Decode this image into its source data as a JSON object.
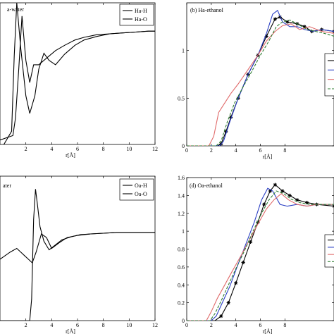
{
  "chart_data": [
    {
      "id": "a",
      "type": "line",
      "title": "a-water",
      "xlabel": "r[Å]",
      "ylabel": "",
      "xlim": [
        0,
        12
      ],
      "ylim": [
        0,
        1.6
      ],
      "x_ticks": [
        2,
        4,
        6,
        8,
        10,
        12
      ],
      "y_ticks": [],
      "legend": {
        "placement": "top-right",
        "entries": [
          "Ha-H",
          "Ha-O"
        ]
      },
      "series": [
        {
          "name": "Ha-H",
          "color": "#000000",
          "dash": "none",
          "x": [
            0,
            1.0,
            1.2,
            1.45,
            1.7,
            2.0,
            2.3,
            2.6,
            3.0,
            3.4,
            3.8,
            4.3,
            5.0,
            5.8,
            6.5,
            7.5,
            8.5,
            9.5,
            10.5,
            11.5,
            12
          ],
          "y": [
            0.05,
            0.1,
            0.3,
            0.85,
            1.45,
            0.95,
            0.7,
            0.9,
            0.9,
            0.95,
            1.0,
            1.06,
            1.12,
            1.18,
            1.21,
            1.24,
            1.25,
            1.26,
            1.27,
            1.28,
            1.28
          ]
        },
        {
          "name": "Ha-O",
          "color": "#000000",
          "dash": "none",
          "x": [
            0.3,
            0.9,
            1.1,
            1.3,
            1.6,
            2.0,
            2.3,
            2.7,
            3.0,
            3.4,
            3.8,
            4.3,
            5.0,
            5.8,
            6.5,
            7.5,
            8.5,
            9.5,
            10.5,
            11.5,
            12
          ],
          "y": [
            0.0,
            0.15,
            1.0,
            1.6,
            1.1,
            0.55,
            0.35,
            0.55,
            0.85,
            1.03,
            0.95,
            0.9,
            1.02,
            1.12,
            1.18,
            1.22,
            1.25,
            1.26,
            1.27,
            1.28,
            1.28
          ]
        }
      ]
    },
    {
      "id": "b",
      "type": "line",
      "title": "(b) Ha-ethanol",
      "xlabel": "r[Å]",
      "ylabel": "",
      "xlim": [
        0,
        12
      ],
      "ylim": [
        0,
        1.5
      ],
      "x_ticks": [
        0,
        2,
        4,
        6,
        8
      ],
      "y_ticks": [
        0,
        0.5,
        1
      ],
      "y_tick_labels": [
        "0",
        "0.5",
        "1"
      ],
      "legend": {
        "placement": "right",
        "entries": []
      },
      "series": [
        {
          "name": "",
          "color": "#000000",
          "dash": "none",
          "marker": "star",
          "x": [
            0,
            2.5,
            2.8,
            3.2,
            3.6,
            4.2,
            5.0,
            5.8,
            6.5,
            7.2,
            7.6,
            8.2,
            9.0,
            9.6,
            10.2,
            11.0,
            12
          ],
          "y": [
            0,
            0,
            0.02,
            0.15,
            0.3,
            0.5,
            0.75,
            0.95,
            1.15,
            1.33,
            1.35,
            1.3,
            1.28,
            1.25,
            1.2,
            1.22,
            1.2
          ]
        },
        {
          "name": "",
          "color": "#2b3fc4",
          "dash": "none",
          "x": [
            0,
            2.7,
            3.0,
            3.5,
            4.2,
            5.0,
            5.8,
            6.5,
            7.0,
            7.4,
            7.8,
            8.4,
            9.0,
            9.6,
            10.3,
            11.0,
            12
          ],
          "y": [
            0,
            0,
            0.05,
            0.25,
            0.5,
            0.75,
            0.95,
            1.18,
            1.38,
            1.42,
            1.3,
            1.25,
            1.25,
            1.22,
            1.2,
            1.22,
            1.2
          ]
        },
        {
          "name": "",
          "color": "#e06a6a",
          "dash": "none",
          "x": [
            0,
            1.8,
            2.2,
            2.6,
            3.1,
            3.6,
            4.2,
            5.0,
            5.8,
            6.5,
            7.2,
            7.8,
            8.5,
            9.2,
            10.0,
            11.0,
            12
          ],
          "y": [
            0,
            0,
            0.1,
            0.35,
            0.45,
            0.55,
            0.65,
            0.8,
            0.95,
            1.1,
            1.2,
            1.26,
            1.28,
            1.22,
            1.25,
            1.2,
            1.18
          ]
        },
        {
          "name": "",
          "color": "#2e7d32",
          "dash": "4,2",
          "x": [
            0,
            2.4,
            2.8,
            3.3,
            3.9,
            4.6,
            5.3,
            6.0,
            6.7,
            7.3,
            7.8,
            8.4,
            9.0,
            9.8,
            10.5,
            11.2,
            12
          ],
          "y": [
            0,
            0,
            0.05,
            0.25,
            0.45,
            0.62,
            0.78,
            0.95,
            1.1,
            1.25,
            1.3,
            1.32,
            1.28,
            1.22,
            1.2,
            1.18,
            1.15
          ]
        }
      ]
    },
    {
      "id": "c",
      "type": "line",
      "title": "ater",
      "xlabel": "r[Å]",
      "ylabel": "",
      "xlim": [
        0,
        12
      ],
      "ylim": [
        0,
        2.0
      ],
      "x_ticks": [
        2,
        4,
        6,
        8,
        10,
        12
      ],
      "y_ticks": [],
      "legend": {
        "placement": "top-right",
        "entries": [
          "Oa-H",
          "Oa-O"
        ]
      },
      "series": [
        {
          "name": "Oa-H",
          "color": "#000000",
          "dash": "none",
          "x": [
            0,
            0.8,
            1.3,
            1.6,
            1.9,
            2.2,
            2.5,
            2.8,
            3.2,
            3.6,
            4.0,
            4.6,
            5.2,
            6.0,
            7.0,
            8.0,
            9.0,
            10.0,
            11.0,
            12
          ],
          "y": [
            0.85,
            0.95,
            1.0,
            0.95,
            0.9,
            0.85,
            0.8,
            0.95,
            1.2,
            1.15,
            1.0,
            1.08,
            1.15,
            1.18,
            1.2,
            1.21,
            1.22,
            1.22,
            1.22,
            1.22
          ]
        },
        {
          "name": "Oa-O",
          "color": "#000000",
          "dash": "none",
          "x": [
            0,
            2.3,
            2.45,
            2.6,
            2.75,
            2.9,
            3.1,
            3.4,
            3.8,
            4.3,
            4.8,
            5.5,
            6.2,
            7.0,
            8.0,
            9.0,
            10.0,
            11.0,
            12
          ],
          "y": [
            0,
            0,
            0.3,
            1.4,
            1.82,
            1.6,
            1.3,
            1.1,
            0.98,
            1.05,
            1.12,
            1.16,
            1.19,
            1.2,
            1.21,
            1.22,
            1.22,
            1.22,
            1.22
          ]
        }
      ]
    },
    {
      "id": "d",
      "type": "line",
      "title": "(d) Oa-ethanol",
      "xlabel": "r[Å]",
      "ylabel": "",
      "xlim": [
        0,
        12
      ],
      "ylim": [
        0,
        1.6
      ],
      "x_ticks": [
        0,
        2,
        4,
        6,
        8
      ],
      "y_ticks": [
        0,
        0.2,
        0.4,
        0.6,
        0.8,
        1,
        1.2,
        1.4,
        1.6
      ],
      "y_tick_labels": [
        "0",
        "0.2",
        "0.4",
        "0.6",
        "0.8",
        "1",
        "1.2",
        "1.4",
        "1.6"
      ],
      "legend": {
        "placement": "right",
        "entries": []
      },
      "series": [
        {
          "name": "",
          "color": "#000000",
          "dash": "none",
          "marker": "star",
          "x": [
            0,
            2.3,
            2.8,
            3.4,
            4.0,
            4.6,
            5.2,
            5.8,
            6.3,
            6.8,
            7.2,
            7.8,
            8.4,
            9.0,
            9.8,
            10.6,
            12
          ],
          "y": [
            0,
            0,
            0.05,
            0.2,
            0.42,
            0.65,
            0.88,
            1.1,
            1.3,
            1.45,
            1.52,
            1.45,
            1.4,
            1.35,
            1.32,
            1.3,
            1.28
          ]
        },
        {
          "name": "",
          "color": "#2b3fc4",
          "dash": "none",
          "x": [
            0,
            2.0,
            2.4,
            2.9,
            3.5,
            4.1,
            4.8,
            5.5,
            6.1,
            6.6,
            7.0,
            7.6,
            8.2,
            9.0,
            9.8,
            10.6,
            12
          ],
          "y": [
            0,
            0,
            0.05,
            0.2,
            0.38,
            0.6,
            0.85,
            1.1,
            1.35,
            1.48,
            1.45,
            1.3,
            1.28,
            1.3,
            1.28,
            1.3,
            1.3
          ]
        },
        {
          "name": "",
          "color": "#e06a6a",
          "dash": "none",
          "x": [
            0,
            1.6,
            2.0,
            2.5,
            3.1,
            3.7,
            4.4,
            5.1,
            5.8,
            6.5,
            7.1,
            7.7,
            8.3,
            9.0,
            9.8,
            10.6,
            12
          ],
          "y": [
            0,
            0,
            0.1,
            0.25,
            0.4,
            0.55,
            0.72,
            0.9,
            1.08,
            1.25,
            1.35,
            1.42,
            1.35,
            1.3,
            1.28,
            1.3,
            1.3
          ]
        },
        {
          "name": "",
          "color": "#2e7d32",
          "dash": "4,2",
          "x": [
            0,
            1.9,
            2.3,
            2.8,
            3.4,
            4.0,
            4.7,
            5.4,
            6.1,
            6.7,
            7.3,
            7.9,
            8.5,
            9.2,
            10.0,
            10.8,
            12
          ],
          "y": [
            0,
            0,
            0.08,
            0.22,
            0.4,
            0.58,
            0.78,
            1.0,
            1.2,
            1.35,
            1.45,
            1.42,
            1.36,
            1.32,
            1.3,
            1.3,
            1.3
          ]
        }
      ]
    }
  ]
}
